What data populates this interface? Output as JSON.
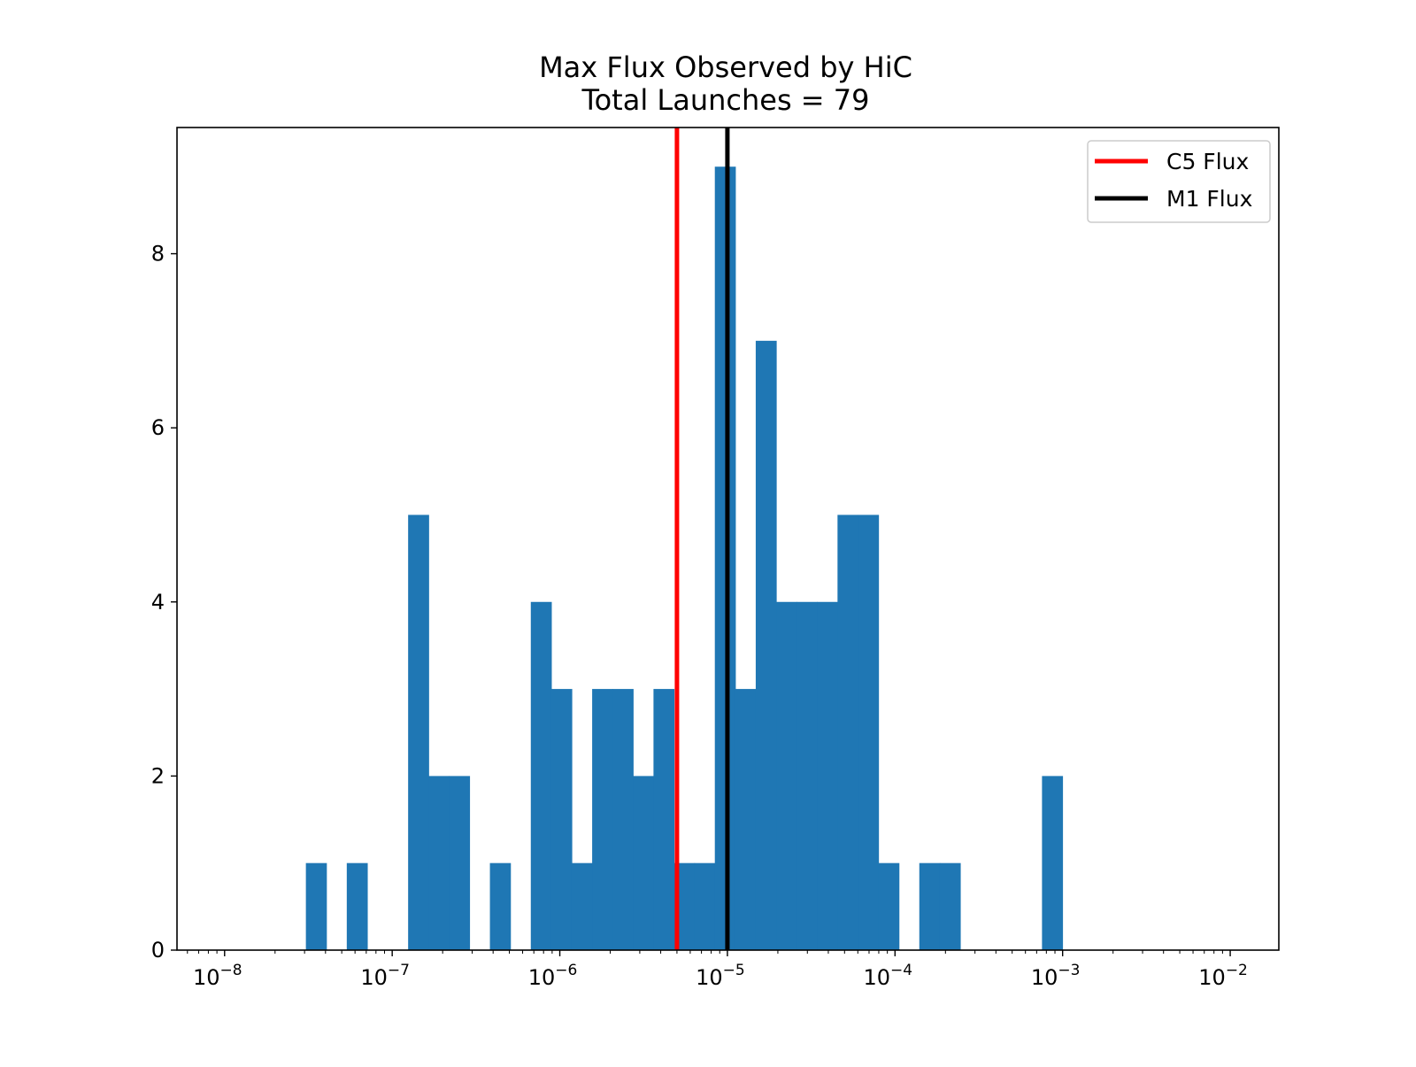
{
  "chart_data": {
    "type": "bar",
    "title": "Max Flux Observed by HiC",
    "subtitle": "Total Launches = 79",
    "xlabel": "",
    "ylabel": "",
    "x_scale": "log",
    "xlim": [
      5.2e-09,
      0.0195
    ],
    "ylim": [
      0,
      9.45
    ],
    "x_tick_labels": [
      {
        "mantissa": "10",
        "exponent": "−8",
        "value": 1e-08
      },
      {
        "mantissa": "10",
        "exponent": "−7",
        "value": 1e-07
      },
      {
        "mantissa": "10",
        "exponent": "−6",
        "value": 1e-06
      },
      {
        "mantissa": "10",
        "exponent": "−5",
        "value": 1e-05
      },
      {
        "mantissa": "10",
        "exponent": "−4",
        "value": 0.0001
      },
      {
        "mantissa": "10",
        "exponent": "−3",
        "value": 0.001
      },
      {
        "mantissa": "10",
        "exponent": "−2",
        "value": 0.01
      }
    ],
    "y_ticks": [
      0,
      2,
      4,
      6,
      8
    ],
    "grid": false,
    "bin_edges_log10": [
      -7.515,
      -7.393,
      -7.271,
      -7.149,
      -7.027,
      -6.905,
      -6.783,
      -6.661,
      -6.539,
      -6.417,
      -6.295,
      -6.173,
      -6.051,
      -5.929,
      -5.807,
      -5.685,
      -5.563,
      -5.441,
      -5.319,
      -5.197,
      -5.075,
      -4.953,
      -4.831,
      -4.709,
      -4.587,
      -4.465,
      -4.343,
      -4.221,
      -4.099,
      -3.977,
      -3.855,
      -3.733,
      -3.611,
      -3.489,
      -3.367,
      -3.245,
      -3.123,
      -3.001,
      -2.879
    ],
    "counts": [
      1,
      0,
      1,
      0,
      0,
      5,
      2,
      2,
      0,
      1,
      0,
      4,
      3,
      1,
      3,
      3,
      2,
      3,
      1,
      1,
      9,
      3,
      7,
      4,
      4,
      4,
      5,
      5,
      1,
      0,
      1,
      1,
      0,
      0,
      0,
      0,
      2,
      0
    ],
    "color": "#1f77b4",
    "vlines": [
      {
        "name": "C5 Flux",
        "x": 5e-06,
        "color": "#ff0000"
      },
      {
        "name": "M1 Flux",
        "x": 1e-05,
        "color": "#000000"
      }
    ],
    "legend_position": "upper right"
  }
}
